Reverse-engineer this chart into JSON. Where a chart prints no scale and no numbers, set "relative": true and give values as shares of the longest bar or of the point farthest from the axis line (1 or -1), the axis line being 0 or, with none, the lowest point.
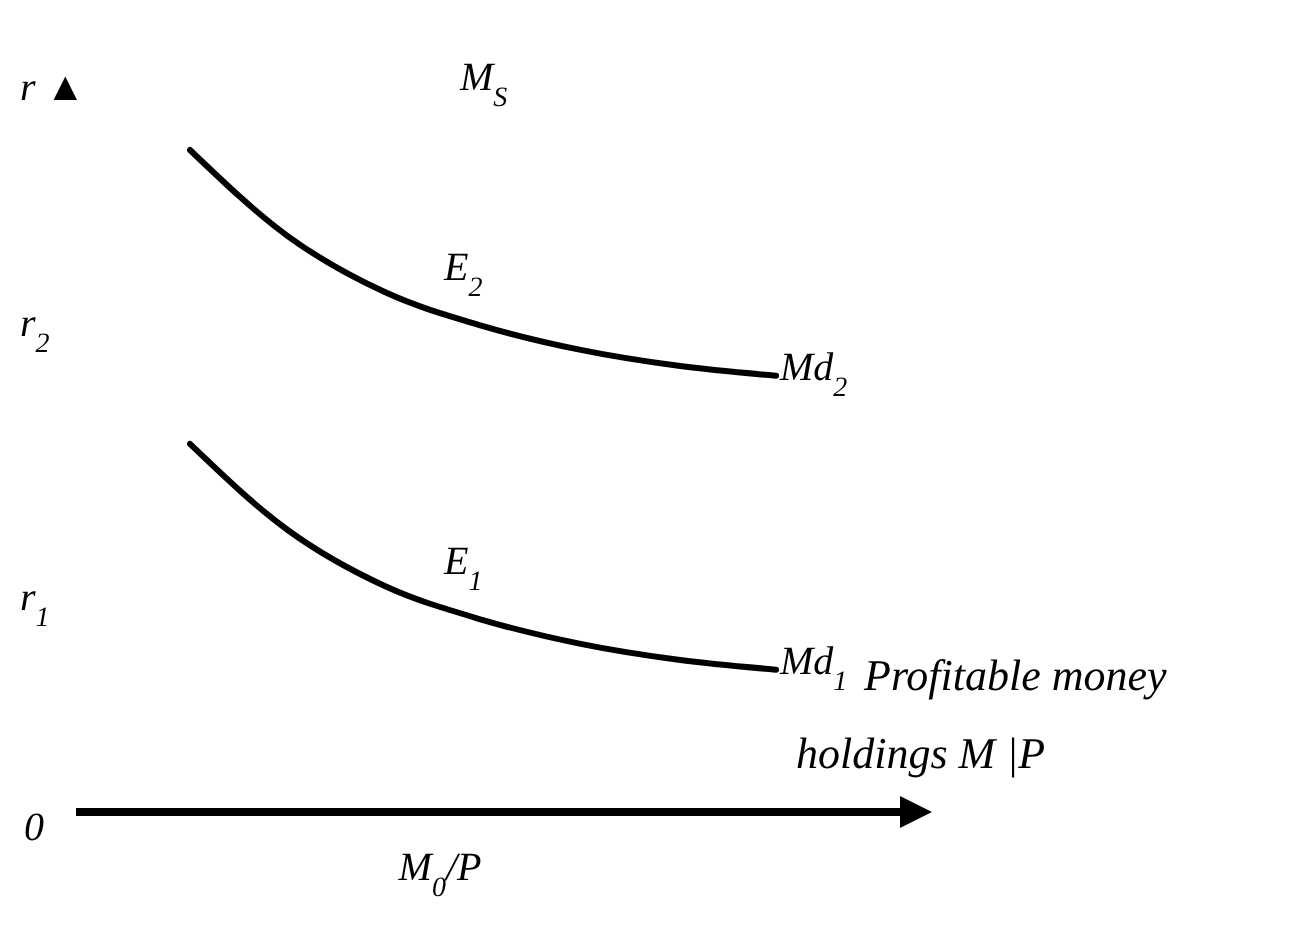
{
  "chart_data": {
    "type": "line",
    "relative": true,
    "ylabel": "r ▲",
    "categories": [
      null,
      null,
      null,
      null,
      null,
      null,
      null
    ],
    "series": [
      {
        "name": "Md$_{2}$",
        "color": "#000000",
        "values": [
          1,
          0.87,
          0.785,
          0.734,
          0.698,
          0.674,
          0.659
        ]
      },
      {
        "name": "Md$_{1}$",
        "color": "#000000",
        "values": [
          0.556,
          0.426,
          0.341,
          0.29,
          0.254,
          0.23,
          0.215
        ]
      }
    ],
    "annotations": [
      "M$_{S}$",
      "r$_{2}$",
      "E$_{2}$",
      "r$_{1}$",
      "E$_{1}$",
      "0",
      "Profitable money",
      "holdings M |P",
      "M$_{0}$/P"
    ],
    "legend": false,
    "grid": false,
    "marker": "none",
    "line_style": "solid"
  }
}
